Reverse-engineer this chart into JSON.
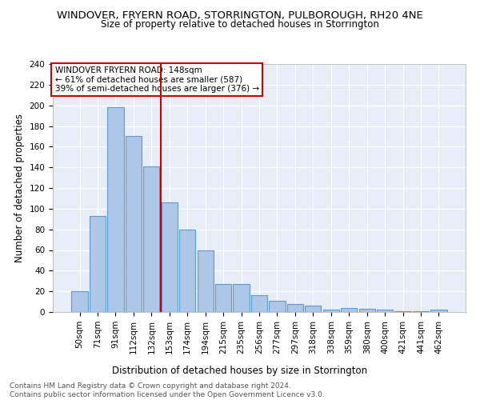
{
  "title": "WINDOVER, FRYERN ROAD, STORRINGTON, PULBOROUGH, RH20 4NE",
  "subtitle": "Size of property relative to detached houses in Storrington",
  "xlabel": "Distribution of detached houses by size in Storrington",
  "ylabel": "Number of detached properties",
  "categories": [
    "50sqm",
    "71sqm",
    "91sqm",
    "112sqm",
    "132sqm",
    "153sqm",
    "174sqm",
    "194sqm",
    "215sqm",
    "235sqm",
    "256sqm",
    "277sqm",
    "297sqm",
    "318sqm",
    "338sqm",
    "359sqm",
    "380sqm",
    "400sqm",
    "421sqm",
    "441sqm",
    "462sqm"
  ],
  "values": [
    20,
    93,
    198,
    170,
    141,
    106,
    80,
    60,
    27,
    27,
    16,
    11,
    8,
    6,
    2,
    4,
    3,
    2,
    1,
    1,
    2
  ],
  "bar_color": "#aec6e8",
  "bar_edge_color": "#5b9bd5",
  "vline_index": 5,
  "vline_color": "#cc0000",
  "annotation_line1": "WINDOVER FRYERN ROAD: 148sqm",
  "annotation_line2": "← 61% of detached houses are smaller (587)",
  "annotation_line3": "39% of semi-detached houses are larger (376) →",
  "annotation_box_color": "#cc0000",
  "ylim": [
    0,
    240
  ],
  "yticks": [
    0,
    20,
    40,
    60,
    80,
    100,
    120,
    140,
    160,
    180,
    200,
    220,
    240
  ],
  "background_color": "#e8eef7",
  "footer_line1": "Contains HM Land Registry data © Crown copyright and database right 2024.",
  "footer_line2": "Contains public sector information licensed under the Open Government Licence v3.0.",
  "title_fontsize": 9.5,
  "subtitle_fontsize": 8.5,
  "xlabel_fontsize": 8.5,
  "ylabel_fontsize": 8.5,
  "tick_fontsize": 7.5,
  "annotation_fontsize": 7.5,
  "footer_fontsize": 6.5
}
